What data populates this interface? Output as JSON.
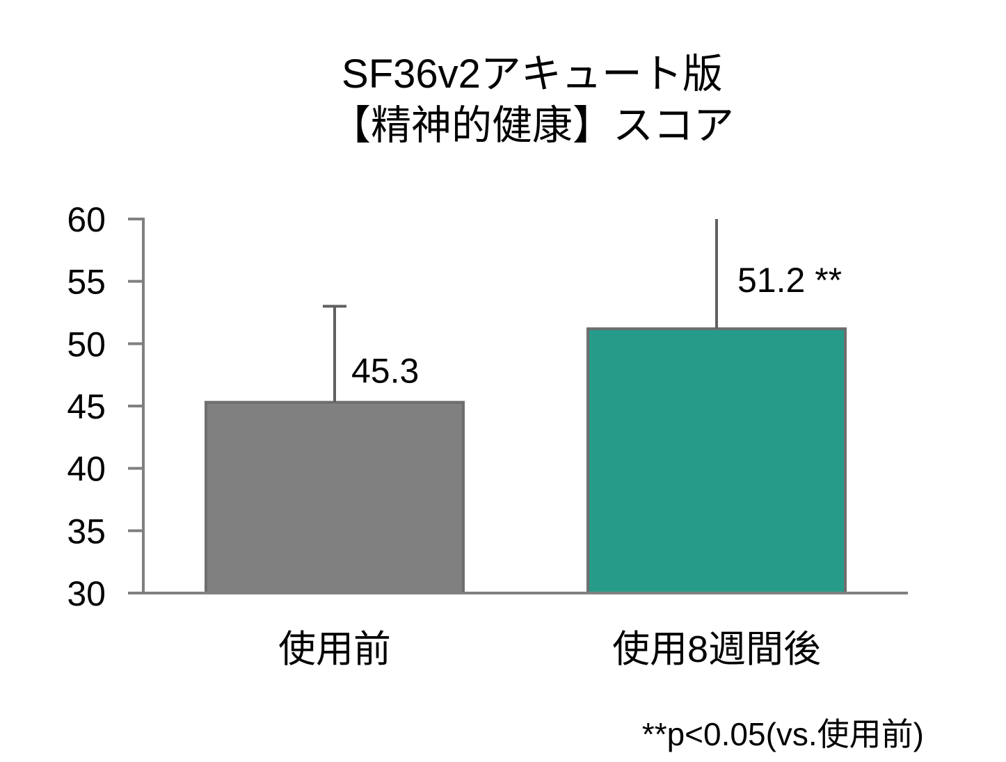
{
  "chart_data": {
    "type": "bar",
    "title": [
      "SF36v2アキュート版",
      "【精神的健康】スコア"
    ],
    "categories": [
      "使用前",
      "使用8週間後"
    ],
    "values": [
      45.3,
      51.2
    ],
    "value_labels": [
      "45.3",
      "51.2 **"
    ],
    "error_bar_upper": [
      53.0,
      60.0
    ],
    "colors": [
      "#808080",
      "#279b8a"
    ],
    "xlabel": "",
    "ylabel": "",
    "ylim": [
      30,
      60
    ],
    "yticks": [
      30,
      35,
      40,
      45,
      50,
      55,
      60
    ],
    "grid": false,
    "legend": "none"
  },
  "footnote": "**p<0.05(vs.使用前)",
  "colors": {
    "axis": "#808080",
    "error_bar": "#606060",
    "bar_border": "#6e6e6e"
  }
}
